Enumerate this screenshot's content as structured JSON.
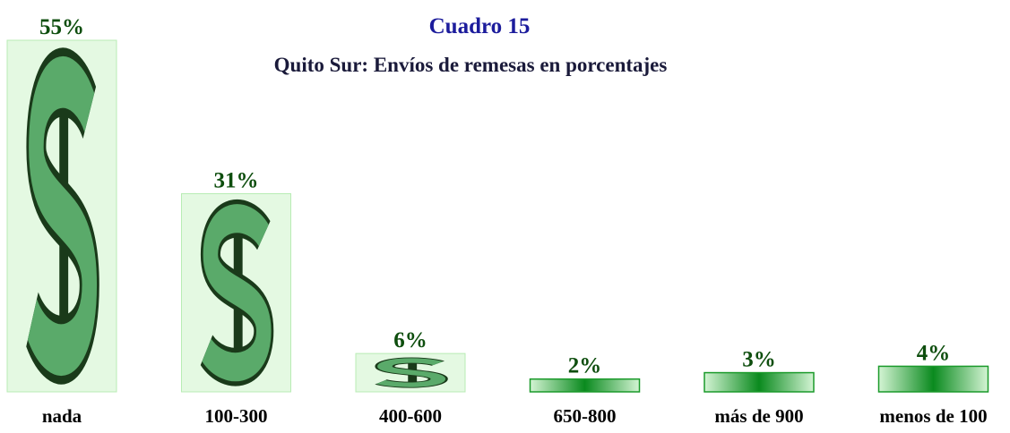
{
  "chart_data": {
    "type": "bar",
    "title": "Cuadro 15",
    "subtitle": "Quito Sur: Envíos de remesas en porcentajes",
    "categories": [
      "nada",
      "100-300",
      "400-600",
      "650-800",
      "más de 900",
      "menos de 100"
    ],
    "values": [
      55,
      31,
      6,
      2,
      3,
      4
    ],
    "value_labels": [
      "55%",
      "31%",
      "6%",
      "2%",
      "3%",
      "4%"
    ],
    "color": "#5aaa6a"
  }
}
